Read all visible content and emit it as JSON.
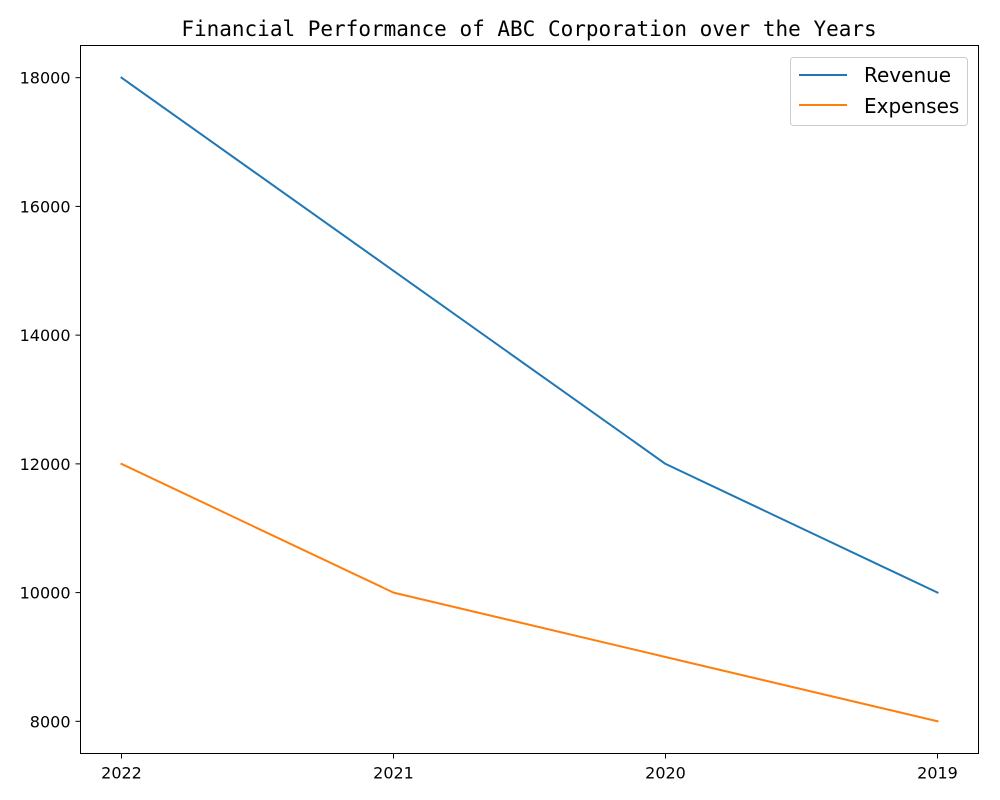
{
  "chart_data": {
    "type": "line",
    "title": "Financial Performance of ABC Corporation over the Years",
    "xlabel": "",
    "ylabel": "",
    "categories": [
      "2022",
      "2021",
      "2020",
      "2019"
    ],
    "series": [
      {
        "name": "Revenue",
        "values": [
          18000,
          15000,
          12000,
          10000
        ],
        "color": "#1f77b4"
      },
      {
        "name": "Expenses",
        "values": [
          12000,
          10000,
          9000,
          8000
        ],
        "color": "#ff7f0e"
      }
    ],
    "yticks": [
      8000,
      10000,
      12000,
      14000,
      16000,
      18000
    ],
    "ylim": [
      7500,
      18500
    ],
    "grid": false,
    "legend_position": "top-right"
  }
}
